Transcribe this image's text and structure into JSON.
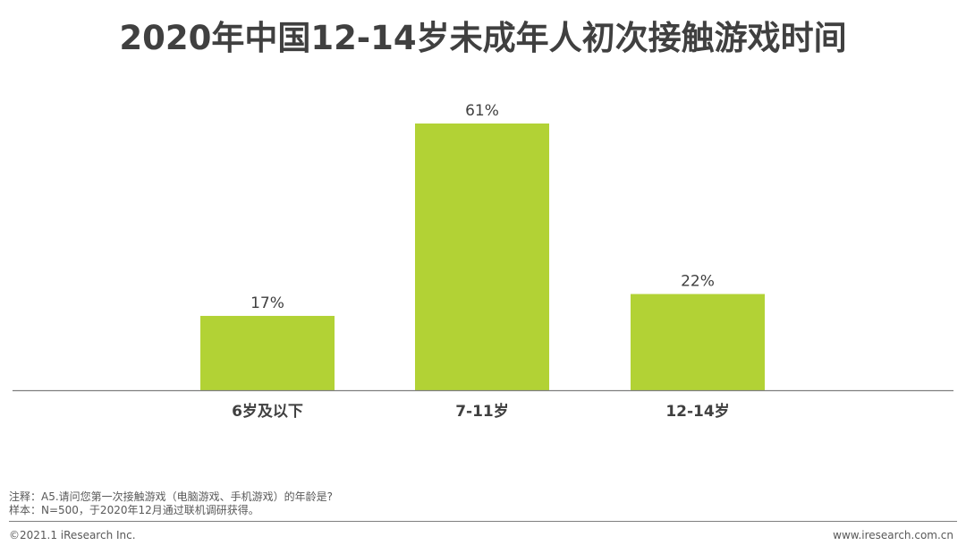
{
  "chart_data": {
    "type": "bar",
    "title": "2020年中国12-14岁未成年人初次接触游戏时间",
    "categories": [
      "6岁及以下",
      "7-11岁",
      "12-14岁"
    ],
    "values": [
      17,
      61,
      22
    ],
    "value_labels": [
      "17%",
      "61%",
      "22%"
    ],
    "unit": "%",
    "ylim": [
      0,
      70
    ],
    "grid": false,
    "legend": "none",
    "bar_color": "#b2d235",
    "axis_color": "#7f7f7f"
  },
  "notes": {
    "line1": "注释：A5.请问您第一次接触游戏（电脑游戏、手机游戏）的年龄是?",
    "line2": "样本：N=500，于2020年12月通过联机调研获得。"
  },
  "footer": {
    "copyright": "©2021.1 iResearch Inc.",
    "website": "www.iresearch.com.cn"
  }
}
